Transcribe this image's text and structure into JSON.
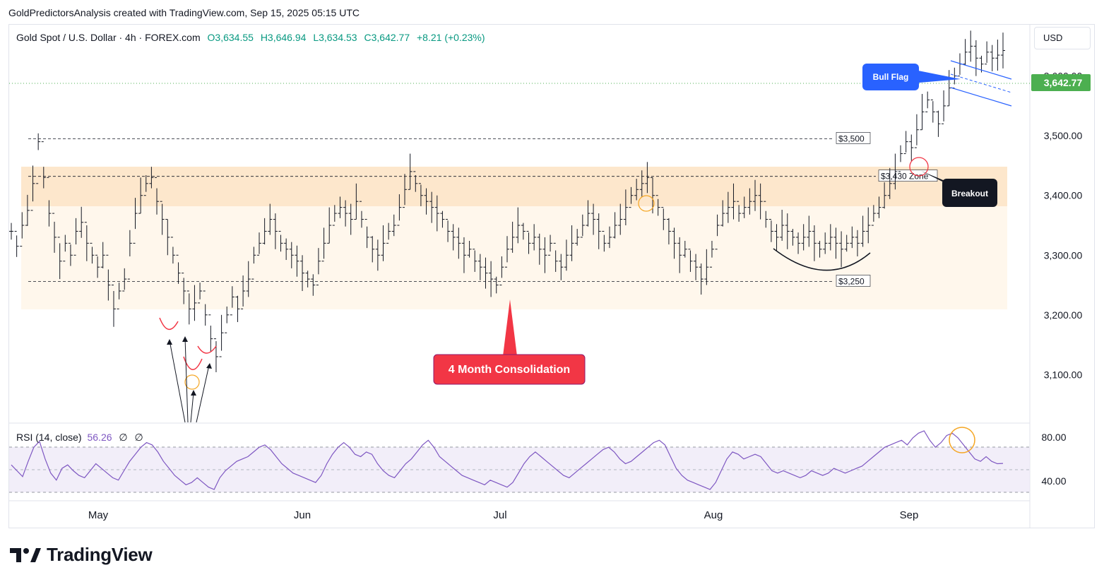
{
  "header": {
    "caption": "GoldPredictorsAnalysis created with TradingView.com, Sep 15, 2025 05:15 UTC"
  },
  "legend": {
    "symbol": "Gold Spot / U.S. Dollar · 4h · FOREX.com",
    "open": "O3,634.55",
    "high": "H3,646.94",
    "low": "L3,634.53",
    "close": "C3,642.77",
    "change": "+8.21 (+0.23%)"
  },
  "currency": {
    "label": "USD"
  },
  "rsi": {
    "label": "RSI (14, close)",
    "value": "56.26",
    "extra1": "∅",
    "extra2": "∅"
  },
  "brand": {
    "name": "TradingView"
  },
  "colors": {
    "up": "#089981",
    "down": "#f23645",
    "price_tag": "#4caf50",
    "zone": "#fff3e0",
    "rsi_line": "#7e57c2",
    "blue_label": "#2962ff",
    "red_label": "#f23645"
  },
  "chart_data": [
    {
      "type": "line",
      "series": [
        {
          "values": [
            3340,
            3315,
            3350,
            3375,
            3420,
            3490,
            3430,
            3370,
            3330,
            3290,
            3320,
            3300,
            3340,
            3355,
            3320,
            3300,
            3280,
            3300,
            3250,
            3210,
            3240,
            3260,
            3320,
            3370,
            3400,
            3420,
            3430,
            3390,
            3360,
            3330,
            3300,
            3270,
            3240,
            3210,
            3220,
            3240,
            3200,
            3160,
            3130,
            3170,
            3200,
            3230,
            3210,
            3240,
            3260,
            3300,
            3320,
            3340,
            3360,
            3340,
            3320,
            3310,
            3300,
            3290,
            3270,
            3260,
            3250,
            3290,
            3320,
            3350,
            3370,
            3380,
            3370,
            3360,
            3390,
            3360,
            3330,
            3310,
            3300,
            3320,
            3340,
            3350,
            3380,
            3410,
            3440,
            3420,
            3400,
            3390,
            3380,
            3370,
            3360,
            3340,
            3330,
            3320,
            3300,
            3310,
            3290,
            3280,
            3270,
            3260,
            3250,
            3280,
            3310,
            3330,
            3350,
            3340,
            3320,
            3330,
            3310,
            3300,
            3320,
            3290,
            3280,
            3300,
            3320,
            3330,
            3350,
            3370,
            3360,
            3340,
            3320,
            3330,
            3350,
            3360,
            3380,
            3400,
            3410,
            3420,
            3430,
            3400,
            3380,
            3360,
            3340,
            3320,
            3300,
            3310,
            3290,
            3280,
            3260,
            3280,
            3310,
            3350,
            3370,
            3380,
            3390,
            3370,
            3380,
            3390,
            3400,
            3390,
            3360,
            3340,
            3330,
            3350,
            3340,
            3330,
            3320,
            3330,
            3340,
            3320,
            3310,
            3320,
            3330,
            3320,
            3310,
            3320,
            3330,
            3320,
            3340,
            3350,
            3370,
            3380,
            3400,
            3420,
            3440,
            3470,
            3490,
            3480,
            3510,
            3540,
            3560,
            3540,
            3520,
            3550,
            3580,
            3600,
            3620,
            3640,
            3650,
            3630,
            3620,
            3640,
            3630,
            3635,
            3642.77
          ]
        }
      ],
      "xlabel": "",
      "ylabel": "",
      "ylim": [
        3020,
        3680
      ],
      "x_ticks": [
        "May",
        "Jun",
        "Jul",
        "Aug",
        "Sep"
      ],
      "y_ticks": [
        "3,600.00",
        "3,500.00",
        "3,400.00",
        "3,300.00",
        "3,200.00",
        "3,100.00"
      ],
      "last_price": "3,642.77",
      "levels": [
        {
          "label": "$3,500",
          "value": 3495
        },
        {
          "label": "$3,430 Zone",
          "value": 3432
        },
        {
          "label": "$3,250",
          "value": 3256
        }
      ],
      "annotations": {
        "consolidation": "4 Month Consolidation",
        "bull_flag": "Bull Flag",
        "breakout": "Breakout"
      },
      "grid": false
    },
    {
      "type": "line",
      "series": [
        {
          "values": [
            55,
            50,
            45,
            58,
            70,
            75,
            60,
            48,
            42,
            52,
            55,
            50,
            46,
            44,
            50,
            56,
            52,
            48,
            44,
            42,
            50,
            58,
            64,
            70,
            74,
            72,
            66,
            58,
            52,
            46,
            42,
            38,
            40,
            44,
            40,
            36,
            34,
            44,
            50,
            54,
            58,
            60,
            62,
            66,
            70,
            72,
            68,
            62,
            56,
            52,
            48,
            46,
            44,
            42,
            40,
            46,
            56,
            64,
            70,
            74,
            70,
            64,
            62,
            66,
            64,
            56,
            50,
            46,
            44,
            50,
            56,
            60,
            66,
            72,
            76,
            70,
            62,
            58,
            54,
            50,
            46,
            44,
            42,
            40,
            38,
            42,
            40,
            38,
            36,
            40,
            48,
            56,
            62,
            66,
            62,
            58,
            54,
            50,
            46,
            44,
            48,
            52,
            56,
            60,
            64,
            68,
            70,
            66,
            60,
            56,
            58,
            62,
            66,
            70,
            74,
            76,
            72,
            62,
            52,
            46,
            42,
            40,
            38,
            36,
            34,
            40,
            50,
            60,
            66,
            64,
            60,
            62,
            64,
            62,
            56,
            50,
            48,
            50,
            48,
            46,
            44,
            46,
            50,
            48,
            46,
            48,
            52,
            50,
            48,
            50,
            52,
            54,
            58,
            62,
            66,
            70,
            72,
            74,
            76,
            72,
            78,
            82,
            84,
            76,
            70,
            74,
            80,
            82,
            78,
            72,
            66,
            60,
            58,
            62,
            58,
            56,
            56.26
          ]
        }
      ],
      "ylim": [
        25,
        90
      ],
      "y_ticks": [
        "80.00",
        "40.00"
      ],
      "bands": [
        70,
        30
      ]
    }
  ]
}
